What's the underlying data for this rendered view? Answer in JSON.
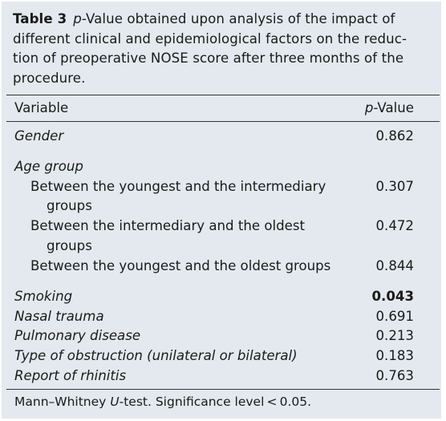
{
  "caption": {
    "label": "Table 3",
    "pvalue_word": "p",
    "line1_rest": "-Value obtained upon analysis of the impact of",
    "line2": "different clinical and epidemiological factors on the reduc-",
    "line3": "tion of preoperative NOSE score after three months of the",
    "line4": "procedure."
  },
  "table": {
    "header": {
      "variable": "Variable",
      "p_italic": "p",
      "p_rest": "-Value"
    },
    "rows": {
      "gender": {
        "label": "Gender",
        "value": "0.862"
      },
      "age_group": {
        "label": "Age group"
      },
      "age1": {
        "line1": "Between the youngest and the intermediary",
        "line2": "groups",
        "value": "0.307"
      },
      "age2": {
        "line1": "Between the intermediary and the oldest",
        "line2": "groups",
        "value": "0.472"
      },
      "age3": {
        "line1": "Between the youngest and the oldest groups",
        "value": "0.844"
      },
      "smoking": {
        "label": "Smoking",
        "value": "0.043"
      },
      "nasal_trauma": {
        "label": "Nasal trauma",
        "value": "0.691"
      },
      "pulmonary": {
        "label": "Pulmonary disease",
        "value": "0.213"
      },
      "obstruction": {
        "label": "Type of obstruction (unilateral or bilateral)",
        "value": "0.183"
      },
      "rhinitis": {
        "label": "Report of rhinitis",
        "value": "0.763"
      }
    }
  },
  "footnote": {
    "pre": "Mann–Whitney ",
    "u": "U",
    "post": "-test. Significance level < 0.05."
  }
}
